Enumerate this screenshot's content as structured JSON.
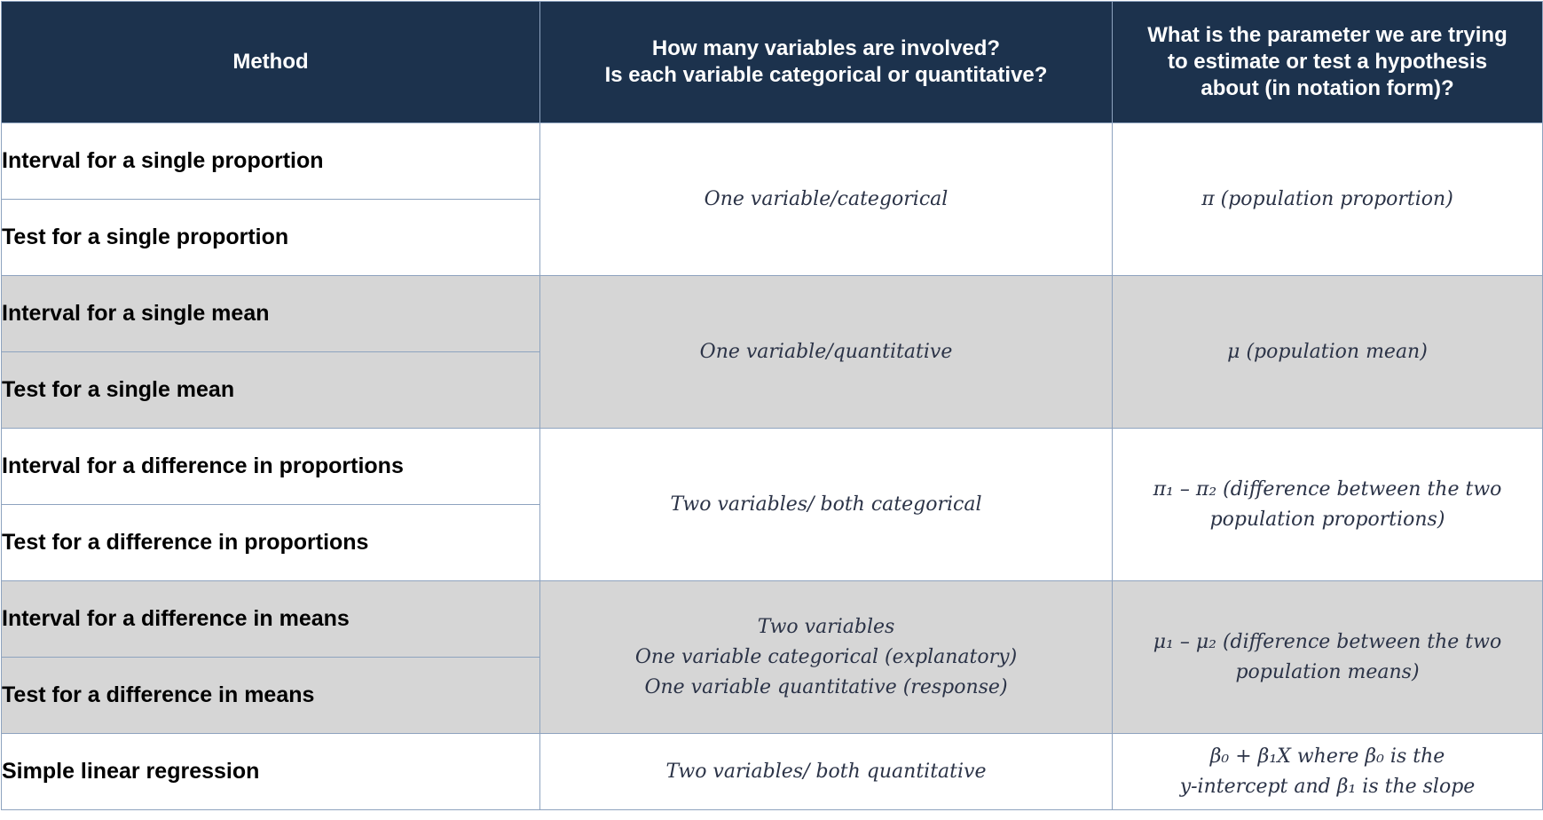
{
  "headers": {
    "method": "Method",
    "variables_line1": "How many variables are involved?",
    "variables_line2": "Is each variable categorical or quantitative?",
    "parameter_line1": "What is the parameter we are trying",
    "parameter_line2": "to estimate or test a hypothesis",
    "parameter_line3": "about (in notation form)?"
  },
  "methods": [
    "Interval for a single proportion",
    "Test for a single proportion",
    "Interval for a single mean",
    "Test for a single mean",
    "Interval for a difference in proportions",
    "Test for a difference in proportions",
    "Interval for a difference in means",
    "Test for a difference in means",
    "Simple linear regression"
  ],
  "groups": [
    {
      "variables": [
        "One variable/categorical"
      ],
      "parameter": [
        "π (population proportion)"
      ]
    },
    {
      "variables": [
        "One variable/quantitative"
      ],
      "parameter": [
        "μ (population mean)"
      ]
    },
    {
      "variables": [
        "Two variables/ both categorical"
      ],
      "parameter": [
        "π₁ – π₂ (difference between the two",
        "population proportions)"
      ]
    },
    {
      "variables": [
        "Two variables",
        "One variable categorical (explanatory)",
        "One variable quantitative (response)"
      ],
      "parameter": [
        "μ₁ – μ₂ (difference between the two",
        "population means)"
      ]
    },
    {
      "variables": [
        "Two variables/ both quantitative"
      ],
      "parameter": [
        "β₀ + β₁X where β₀ is the",
        "y-intercept and β₁ is the slope"
      ]
    }
  ],
  "colors": {
    "header_bg": "#1c324d",
    "header_text": "#ffffff",
    "shaded_row": "#d6d6d6",
    "border": "#8ea3bf"
  }
}
